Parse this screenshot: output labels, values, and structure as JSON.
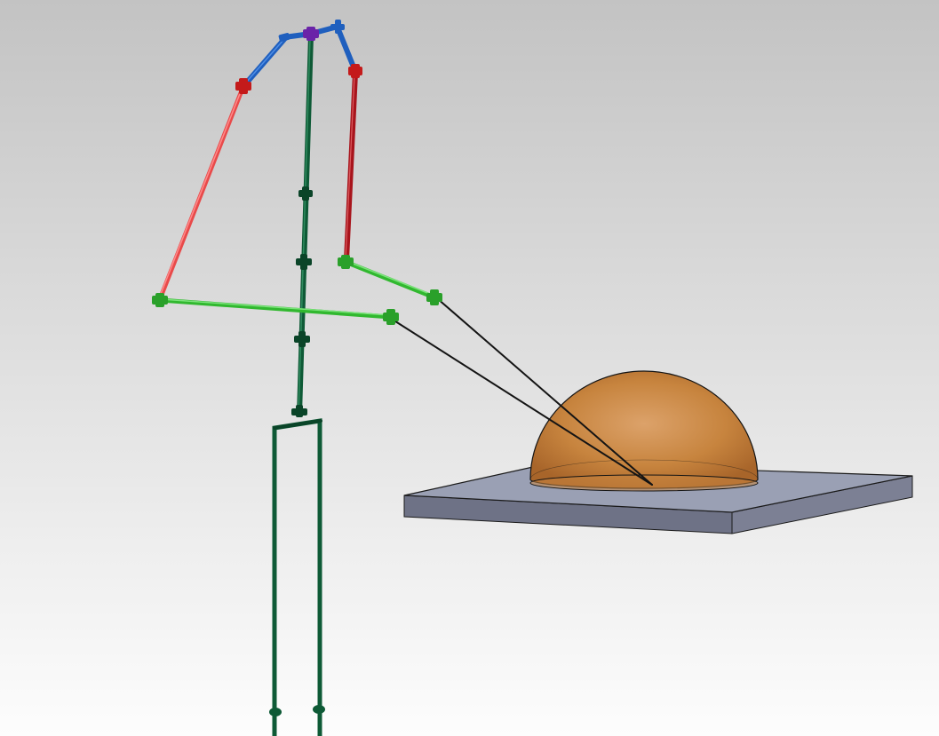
{
  "scene": {
    "background_top": "#c3c3c3",
    "background_bottom": "#fdfdfd",
    "colors": {
      "spine": "#0e5a36",
      "spine_dark": "#0a4428",
      "spine_light": "#2f8a5e",
      "shoulder": "#6a23a8",
      "clavicle": "#1f5fbe",
      "clavicle_light": "#4f8ee6",
      "upper_arm_left": "#e84a4a",
      "upper_arm_right": "#a8141c",
      "upper_arm_light": "#ff8a8a",
      "elbow": "#c41a1a",
      "forearm": "#31b82f",
      "forearm_light": "#7be37a",
      "forearm_joint": "#2aa02a",
      "pointer_line": "#141414",
      "dome": "#c9853f",
      "dome_edge": "#141414",
      "plate_top": "#9aa0b4",
      "plate_front": "#6e7286",
      "plate_side": "#7c8094",
      "plate_edge": "#1a1a1a"
    }
  }
}
